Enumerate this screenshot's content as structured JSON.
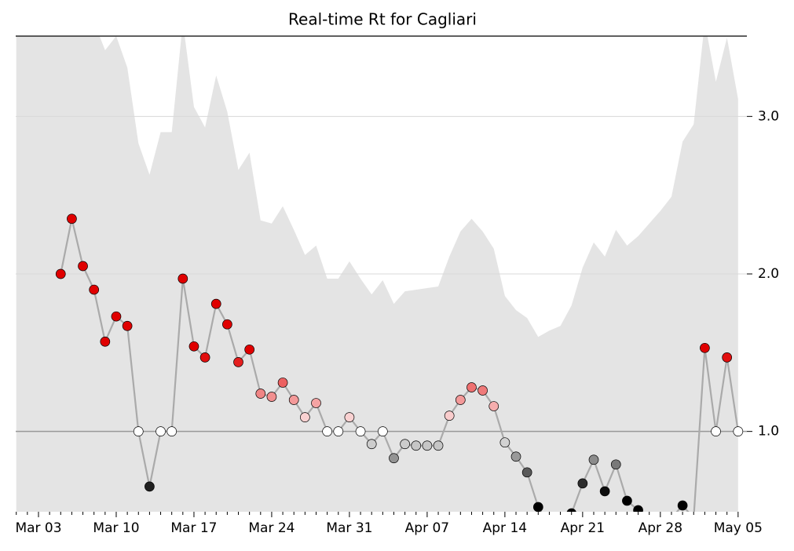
{
  "chart_data": {
    "type": "line",
    "title": "Real-time Rt for Cagliari",
    "categories": [
      "Mar 01",
      "Mar 02",
      "Mar 03",
      "Mar 04",
      "Mar 05",
      "Mar 06",
      "Mar 07",
      "Mar 08",
      "Mar 09",
      "Mar 10",
      "Mar 11",
      "Mar 12",
      "Mar 13",
      "Mar 14",
      "Mar 15",
      "Mar 16",
      "Mar 17",
      "Mar 18",
      "Mar 19",
      "Mar 20",
      "Mar 21",
      "Mar 22",
      "Mar 23",
      "Mar 24",
      "Mar 25",
      "Mar 26",
      "Mar 27",
      "Mar 28",
      "Mar 29",
      "Mar 30",
      "Mar 31",
      "Apr 01",
      "Apr 02",
      "Apr 03",
      "Apr 04",
      "Apr 05",
      "Apr 06",
      "Apr 07",
      "Apr 08",
      "Apr 09",
      "Apr 10",
      "Apr 11",
      "Apr 12",
      "Apr 13",
      "Apr 14",
      "Apr 15",
      "Apr 16",
      "Apr 17",
      "Apr 18",
      "Apr 19",
      "Apr 20",
      "Apr 21",
      "Apr 22",
      "Apr 23",
      "Apr 24",
      "Apr 25",
      "Apr 26",
      "Apr 27",
      "Apr 28",
      "Apr 29",
      "Apr 30",
      "May 01",
      "May 02",
      "May 03",
      "May 04",
      "May 05"
    ],
    "xtick_indices": [
      2,
      9,
      16,
      23,
      30,
      37,
      44,
      51,
      58,
      65
    ],
    "series": [
      {
        "name": "Rt",
        "color": "#aaaaaa",
        "values": [
          null,
          null,
          null,
          null,
          2.0,
          2.35,
          2.05,
          1.9,
          1.57,
          1.73,
          1.67,
          1.0,
          0.65,
          1.0,
          1.0,
          1.97,
          1.54,
          1.47,
          1.81,
          1.68,
          1.44,
          1.52,
          1.24,
          1.22,
          1.31,
          1.2,
          1.09,
          1.18,
          1.0,
          1.0,
          1.09,
          1.0,
          0.92,
          1.0,
          0.83,
          0.92,
          0.91,
          0.91,
          0.91,
          1.1,
          1.2,
          1.28,
          1.26,
          1.16,
          0.93,
          0.84,
          0.74,
          0.52,
          0.4,
          0.4,
          0.48,
          0.67,
          0.82,
          0.62,
          0.79,
          0.56,
          0.5,
          0.4,
          0.4,
          0.45,
          0.53,
          0.45,
          1.53,
          1.0,
          1.47,
          1.0
        ]
      },
      {
        "name": "upper",
        "color": "#e4e4e4",
        "values": [
          3.6,
          3.6,
          3.6,
          3.6,
          3.6,
          3.6,
          3.6,
          3.6,
          3.42,
          3.51,
          3.31,
          2.83,
          2.63,
          2.9,
          2.9,
          3.6,
          3.06,
          2.93,
          3.26,
          3.03,
          2.66,
          2.77,
          2.34,
          2.32,
          2.43,
          2.28,
          2.12,
          2.18,
          1.97,
          1.97,
          2.08,
          1.97,
          1.87,
          1.96,
          1.81,
          1.89,
          1.9,
          1.91,
          1.92,
          2.11,
          2.27,
          2.35,
          2.27,
          2.16,
          1.86,
          1.77,
          1.72,
          1.6,
          1.64,
          1.67,
          1.8,
          2.04,
          2.2,
          2.11,
          2.28,
          2.18,
          2.24,
          2.32,
          2.4,
          2.49,
          2.84,
          2.95,
          3.6,
          3.22,
          3.5,
          3.11
        ]
      }
    ],
    "cmap": [
      "#000000",
      "#ffffff",
      "#e00000"
    ],
    "ylim": [
      0.49,
      3.51
    ],
    "yticks": [
      {
        "value": 1,
        "label": "1.0"
      },
      {
        "value": 2,
        "label": "2.0"
      },
      {
        "value": 3,
        "label": "3.0"
      }
    ],
    "grid": true
  }
}
